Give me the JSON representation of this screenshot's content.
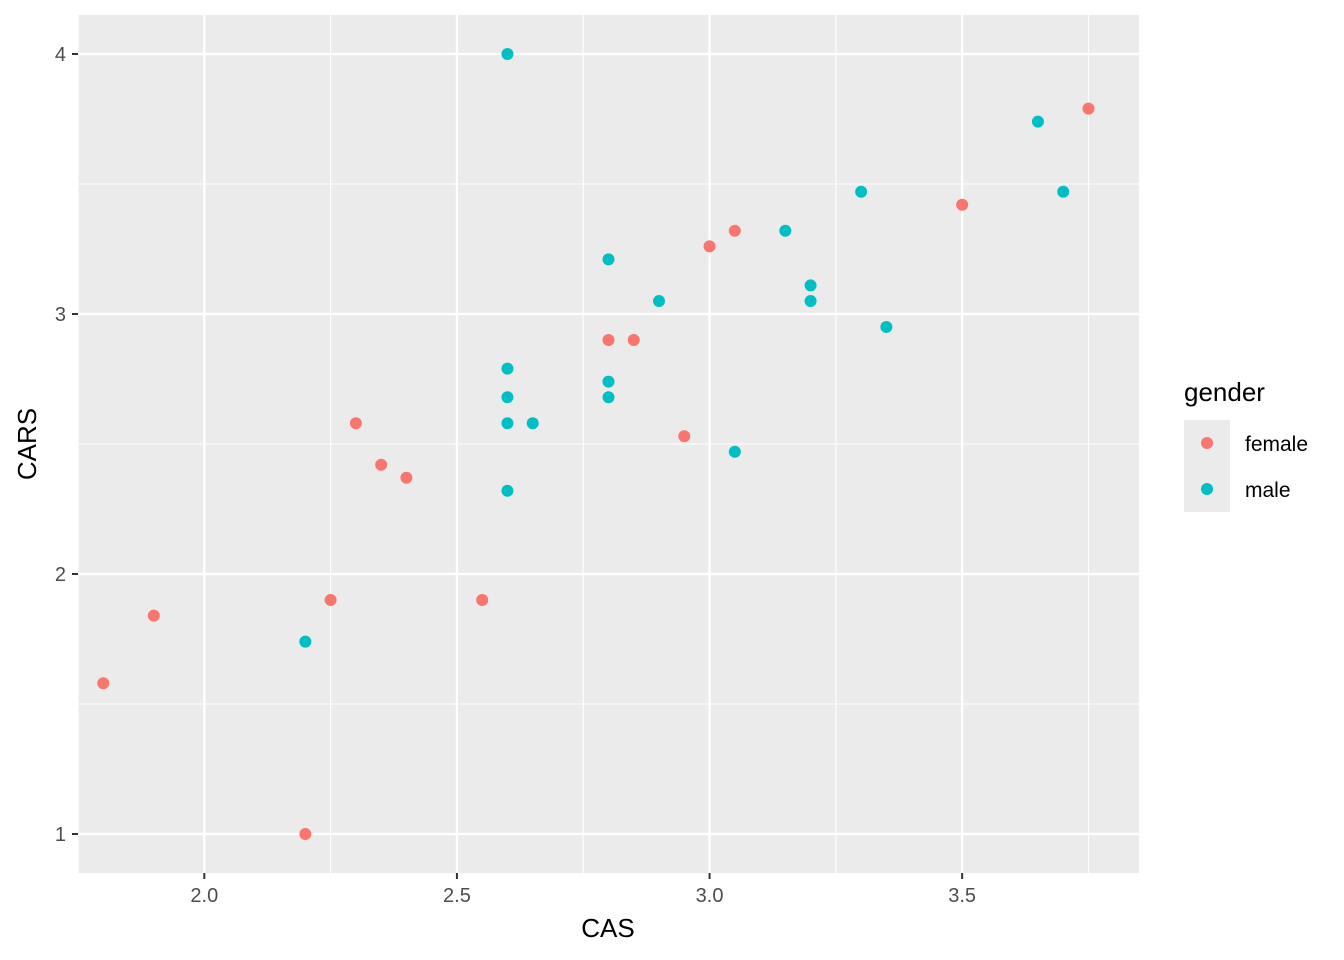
{
  "chart_data": {
    "type": "scatter",
    "title": "",
    "xlabel": "CAS",
    "ylabel": "CARS",
    "xlim": [
      1.75,
      3.85
    ],
    "ylim": [
      0.85,
      4.15
    ],
    "x_ticks": [
      2.0,
      2.5,
      3.0,
      3.5
    ],
    "x_tick_labels": [
      "2.0",
      "2.5",
      "3.0",
      "3.5"
    ],
    "y_ticks": [
      1,
      2,
      3,
      4
    ],
    "y_tick_labels": [
      "1",
      "2",
      "3",
      "4"
    ],
    "grid": true,
    "legend": {
      "title": "gender",
      "position": "right",
      "entries": [
        "female",
        "male"
      ]
    },
    "series": [
      {
        "name": "female",
        "color": "#F8766D",
        "points": [
          [
            1.8,
            1.58
          ],
          [
            1.9,
            1.84
          ],
          [
            2.2,
            1.0
          ],
          [
            2.25,
            1.9
          ],
          [
            2.3,
            2.58
          ],
          [
            2.35,
            2.42
          ],
          [
            2.4,
            2.37
          ],
          [
            2.55,
            1.9
          ],
          [
            2.8,
            2.9
          ],
          [
            2.85,
            2.9
          ],
          [
            2.95,
            2.53
          ],
          [
            3.0,
            3.26
          ],
          [
            3.05,
            3.32
          ],
          [
            3.5,
            3.42
          ],
          [
            3.75,
            3.79
          ]
        ]
      },
      {
        "name": "male",
        "color": "#00BFC4",
        "points": [
          [
            2.2,
            1.74
          ],
          [
            2.6,
            4.0
          ],
          [
            2.6,
            2.79
          ],
          [
            2.6,
            2.68
          ],
          [
            2.6,
            2.58
          ],
          [
            2.6,
            2.32
          ],
          [
            2.65,
            2.58
          ],
          [
            2.8,
            3.21
          ],
          [
            2.8,
            2.74
          ],
          [
            2.8,
            2.68
          ],
          [
            2.9,
            3.05
          ],
          [
            3.05,
            2.47
          ],
          [
            3.15,
            3.32
          ],
          [
            3.2,
            3.11
          ],
          [
            3.2,
            3.05
          ],
          [
            3.3,
            3.47
          ],
          [
            3.35,
            2.95
          ],
          [
            3.65,
            3.74
          ],
          [
            3.7,
            3.47
          ]
        ]
      }
    ]
  }
}
